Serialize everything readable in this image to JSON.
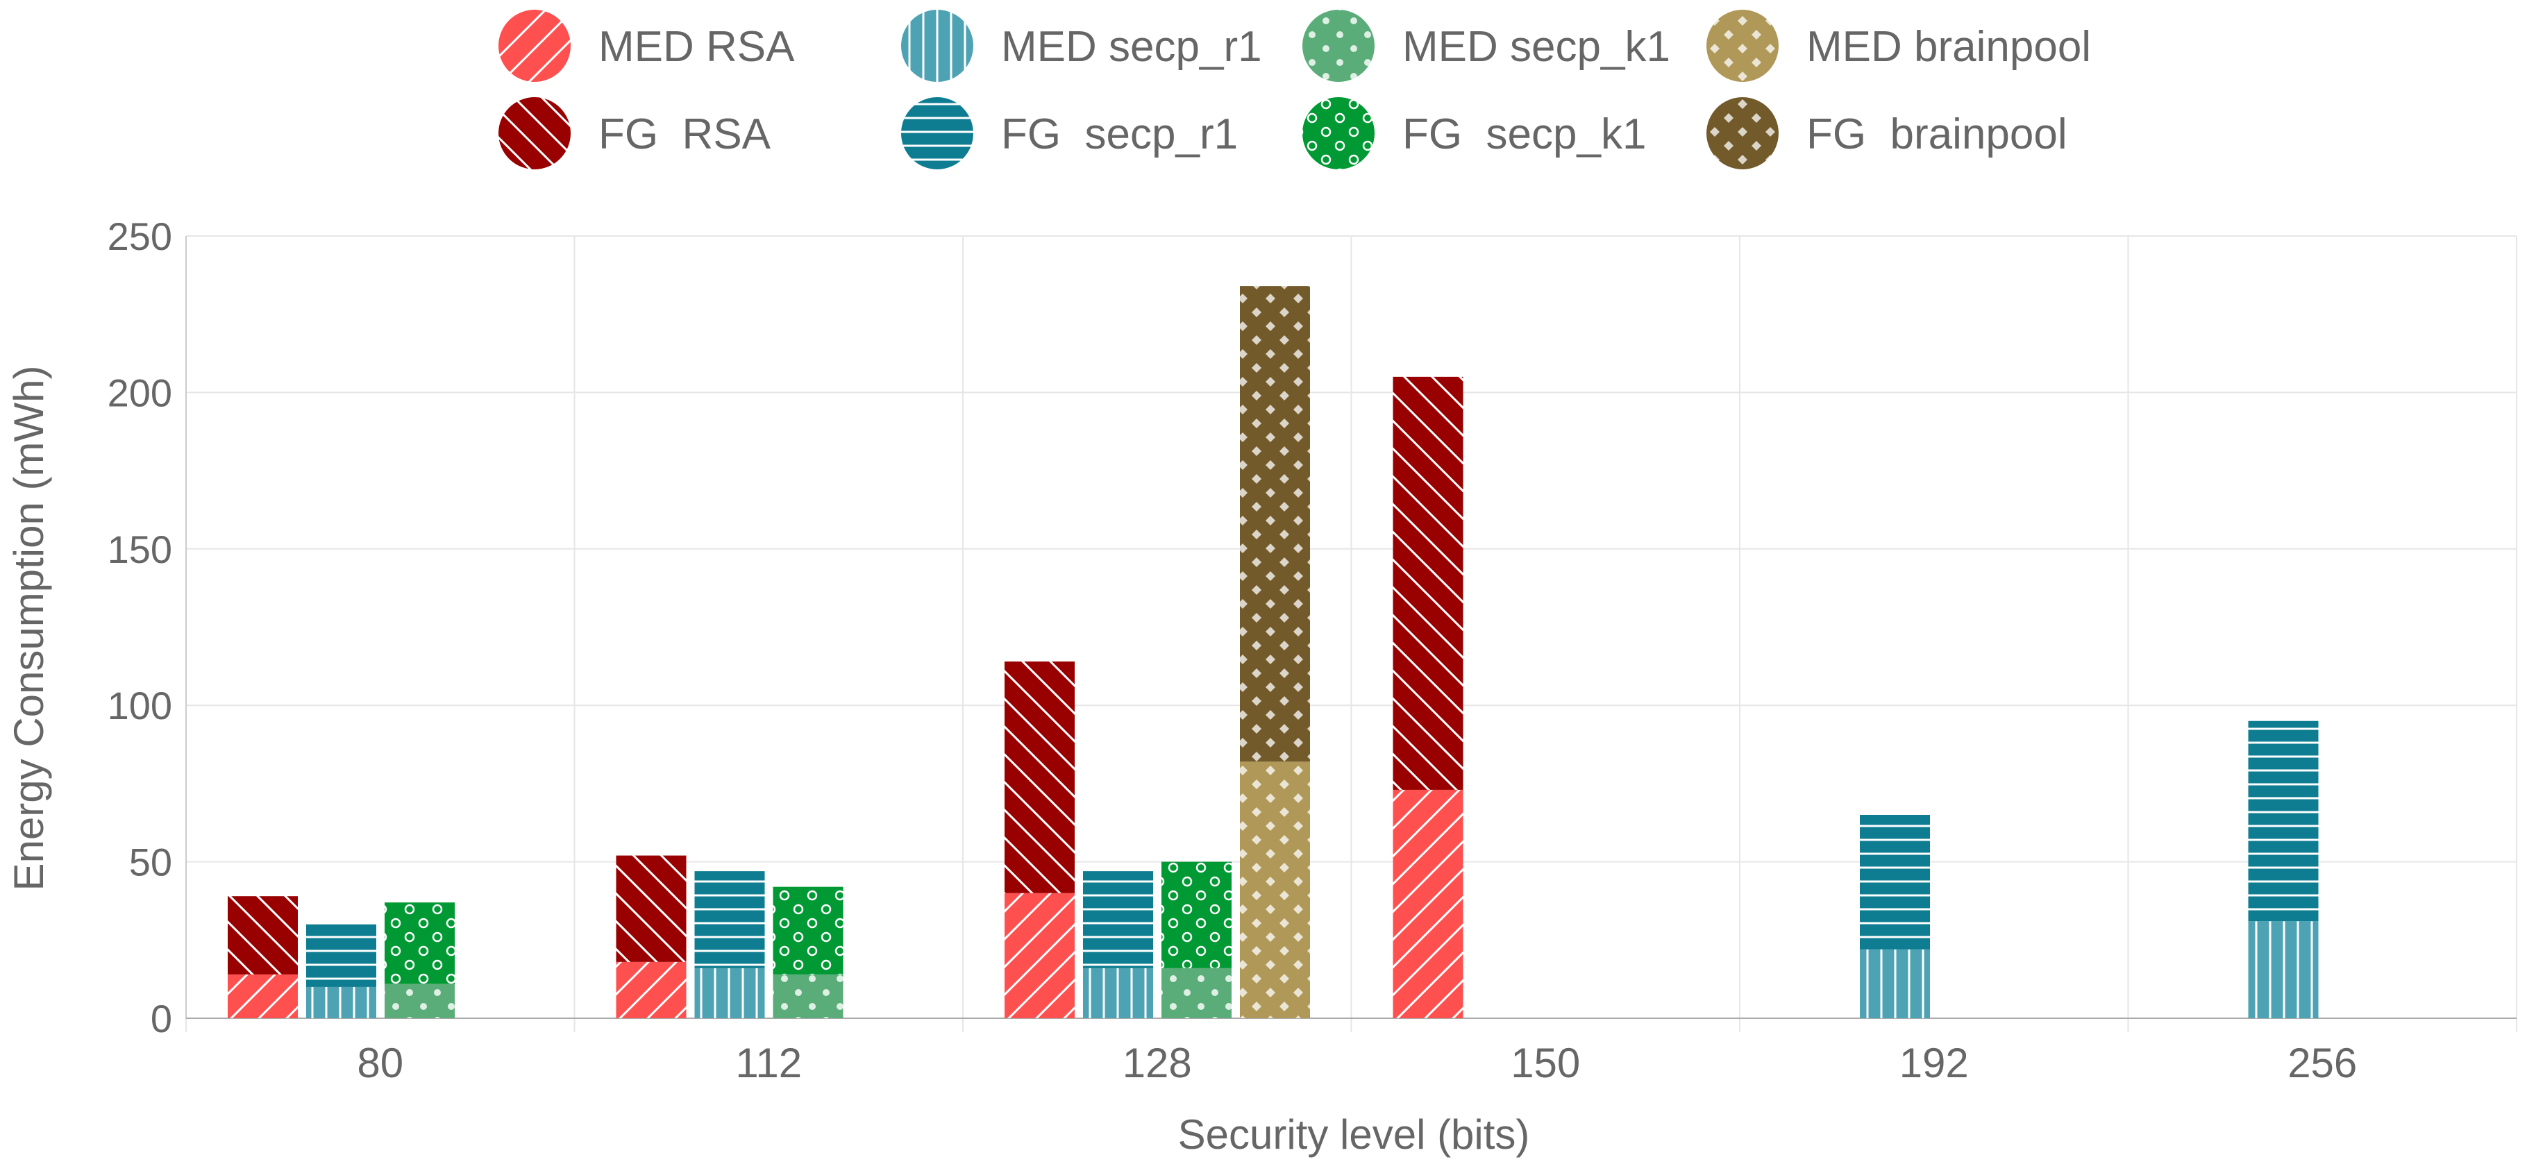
{
  "chart_data": {
    "type": "bar",
    "stacked": true,
    "xlabel": "Security level (bits)",
    "ylabel": "Energy Consumption (mWh)",
    "ylim": [
      0,
      250
    ],
    "yticks": [
      0,
      50,
      100,
      150,
      200,
      250
    ],
    "grid": true,
    "legend_position": "top",
    "categories": [
      "80",
      "112",
      "128",
      "150",
      "192",
      "256"
    ],
    "groups": [
      {
        "key": "RSA",
        "med": "MED RSA",
        "fg": "FG  RSA",
        "med_values": [
          14,
          18,
          40,
          73,
          null,
          null
        ],
        "fg_values": [
          25,
          34,
          74,
          132,
          null,
          null
        ],
        "med_color": "#ff5050",
        "fg_color": "#990000",
        "med_pattern": "diag-up",
        "fg_pattern": "diag-down"
      },
      {
        "key": "secp_r1",
        "med": "MED secp_r1",
        "fg": "FG  secp_r1",
        "med_values": [
          10,
          16,
          16,
          null,
          22,
          31
        ],
        "fg_values": [
          20,
          31,
          31,
          null,
          43,
          64
        ],
        "med_color": "#4da3b3",
        "fg_color": "#0e7d91",
        "med_pattern": "vertical",
        "fg_pattern": "horizontal"
      },
      {
        "key": "secp_k1",
        "med": "MED secp_k1",
        "fg": "FG  secp_k1",
        "med_values": [
          11,
          14,
          16,
          null,
          null,
          null
        ],
        "fg_values": [
          26,
          28,
          34,
          null,
          null,
          null
        ],
        "med_color": "#5aad78",
        "fg_color": "#009933",
        "med_pattern": "dots",
        "fg_pattern": "rings"
      },
      {
        "key": "brainpool",
        "med": "MED brainpool",
        "fg": "FG  brainpool",
        "med_values": [
          null,
          null,
          82,
          null,
          null,
          null
        ],
        "fg_values": [
          null,
          null,
          152,
          null,
          null,
          null
        ],
        "med_color": "#b09858",
        "fg_color": "#735a2a",
        "med_pattern": "diamonds",
        "fg_pattern": "diamonds"
      }
    ]
  }
}
